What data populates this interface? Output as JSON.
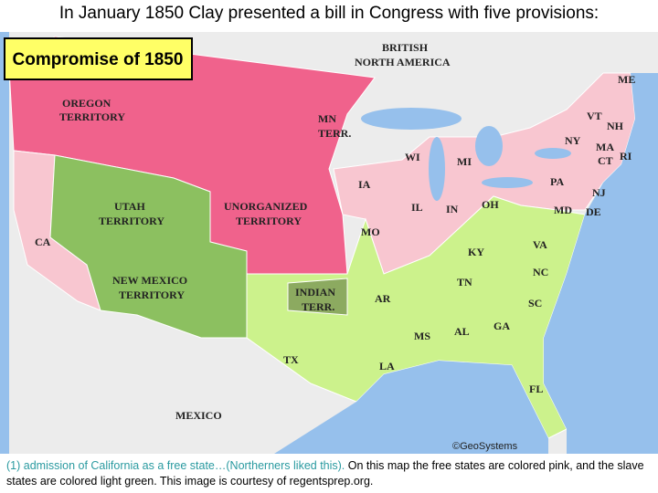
{
  "title": "In January 1850 Clay presented a bill in Congress with five provisions:",
  "map": {
    "heading": "Compromise of 1850",
    "labels": [
      "BRITISH",
      "NORTH AMERICA",
      "OREGON",
      "TERRITORY",
      "MN",
      "TERR.",
      "UTAH",
      "TERRITORY",
      "UNORGANIZED",
      "TERRITORY",
      "CA",
      "NEW MEXICO",
      "TERRITORY",
      "INDIAN",
      "TERR.",
      "TX",
      "MEXICO",
      "ME",
      "VT",
      "NH",
      "NY",
      "MA",
      "CT",
      "RI",
      "WI",
      "MI",
      "IA",
      "PA",
      "NJ",
      "IL",
      "IN",
      "OH",
      "MD",
      "DE",
      "MO",
      "KY",
      "VA",
      "TN",
      "NC",
      "AR",
      "SC",
      "MS",
      "AL",
      "GA",
      "LA",
      "FL"
    ],
    "credit": "©GeoSystems"
  },
  "caption": {
    "highlight": "(1) admission of California as a free state…(Northerners liked this).",
    "rest": " On this map the free states are colored pink, and the slave states are colored light green. This image is courtesy of regentsprep.org."
  }
}
